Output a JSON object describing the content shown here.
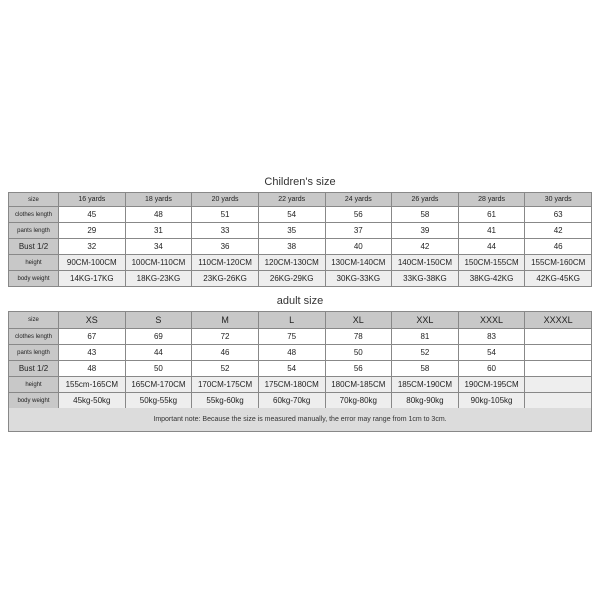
{
  "children": {
    "title": "Children's size",
    "row_labels": [
      "size",
      "clothes length",
      "pants length",
      "Bust 1/2",
      "height",
      "body weight"
    ],
    "col_headers": [
      "16 yards",
      "18 yards",
      "20 yards",
      "22 yards",
      "24 yards",
      "26 yards",
      "28 yards",
      "30 yards"
    ],
    "rows": [
      [
        "45",
        "48",
        "51",
        "54",
        "56",
        "58",
        "61",
        "63"
      ],
      [
        "29",
        "31",
        "33",
        "35",
        "37",
        "39",
        "41",
        "42"
      ],
      [
        "32",
        "34",
        "36",
        "38",
        "40",
        "42",
        "44",
        "46"
      ],
      [
        "90CM-100CM",
        "100CM-110CM",
        "110CM-120CM",
        "120CM-130CM",
        "130CM-140CM",
        "140CM-150CM",
        "150CM-155CM",
        "155CM-160CM"
      ],
      [
        "14KG-17KG",
        "18KG-23KG",
        "23KG-26KG",
        "26KG-29KG",
        "30KG-33KG",
        "33KG-38KG",
        "38KG-42KG",
        "42KG-45KG"
      ]
    ]
  },
  "adult": {
    "title": "adult size",
    "row_labels": [
      "size",
      "clothes length",
      "pants length",
      "Bust 1/2",
      "height",
      "body weight"
    ],
    "col_headers": [
      "XS",
      "S",
      "M",
      "L",
      "XL",
      "XXL",
      "XXXL",
      "XXXXL"
    ],
    "rows": [
      [
        "67",
        "69",
        "72",
        "75",
        "78",
        "81",
        "83",
        ""
      ],
      [
        "43",
        "44",
        "46",
        "48",
        "50",
        "52",
        "54",
        ""
      ],
      [
        "48",
        "50",
        "52",
        "54",
        "56",
        "58",
        "60",
        ""
      ],
      [
        "155cm-165CM",
        "165CM-170CM",
        "170CM-175CM",
        "175CM-180CM",
        "180CM-185CM",
        "185CM-190CM",
        "190CM-195CM",
        ""
      ],
      [
        "45kg-50kg",
        "50kg-55kg",
        "55kg-60kg",
        "60kg-70kg",
        "70kg-80kg",
        "80kg-90kg",
        "90kg-105kg",
        ""
      ]
    ]
  },
  "footnote": "Important note: Because the size is measured manually, the error may range from 1cm to 3cm.",
  "colors": {
    "header_bg": "#c8c8c8",
    "shaded_bg": "#eeeeee",
    "border": "#888888",
    "text": "#222222",
    "footnote_bg": "#dcdcdc"
  }
}
